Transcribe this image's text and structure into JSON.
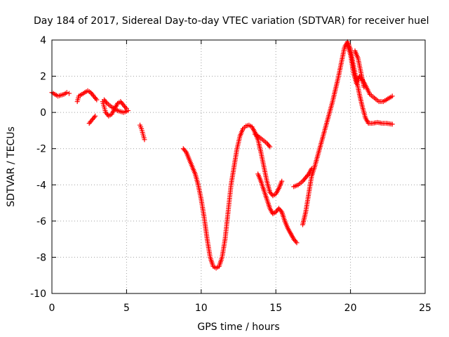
{
  "chart_data": {
    "type": "scatter",
    "title": "Day 184 of 2017, Sidereal Day-to-day VTEC variation (SDTVAR) for receiver huel",
    "xlabel": "GPS time / hours",
    "ylabel": "SDTVAR / TECUs",
    "xlim": [
      0,
      25
    ],
    "ylim": [
      -10,
      4
    ],
    "xticks": [
      0,
      5,
      10,
      15,
      20,
      25
    ],
    "yticks": [
      -10,
      -8,
      -6,
      -4,
      -2,
      0,
      2,
      4
    ],
    "grid": true,
    "marker": "+",
    "color": "#ff0000",
    "series": [
      {
        "segments": [
          [
            [
              0.0,
              1.1
            ],
            [
              0.2,
              1.0
            ],
            [
              0.4,
              0.9
            ],
            [
              0.6,
              0.95
            ],
            [
              0.8,
              1.0
            ],
            [
              1.0,
              1.1
            ],
            [
              1.15,
              1.05
            ]
          ],
          [
            [
              1.7,
              0.6
            ],
            [
              1.8,
              0.9
            ],
            [
              2.0,
              1.0
            ],
            [
              2.2,
              1.1
            ],
            [
              2.4,
              1.2
            ],
            [
              2.6,
              1.1
            ],
            [
              2.8,
              0.9
            ],
            [
              3.0,
              0.7
            ]
          ],
          [
            [
              2.5,
              -0.6
            ],
            [
              2.7,
              -0.4
            ],
            [
              2.9,
              -0.2
            ]
          ],
          [
            [
              3.4,
              0.6
            ],
            [
              3.5,
              0.3
            ],
            [
              3.6,
              0.0
            ],
            [
              3.8,
              -0.2
            ],
            [
              4.0,
              -0.1
            ],
            [
              4.2,
              0.2
            ],
            [
              4.4,
              0.5
            ],
            [
              4.6,
              0.6
            ],
            [
              4.8,
              0.4
            ],
            [
              5.0,
              0.2
            ],
            [
              5.1,
              0.1
            ],
            [
              4.8,
              0.0
            ],
            [
              4.4,
              0.1
            ],
            [
              4.0,
              0.3
            ],
            [
              3.7,
              0.5
            ],
            [
              3.5,
              0.7
            ]
          ],
          [
            [
              5.9,
              -0.7
            ],
            [
              6.0,
              -0.9
            ],
            [
              6.1,
              -1.2
            ],
            [
              6.2,
              -1.5
            ]
          ],
          [
            [
              8.8,
              -2.0
            ],
            [
              9.0,
              -2.2
            ],
            [
              9.2,
              -2.6
            ],
            [
              9.4,
              -3.0
            ],
            [
              9.6,
              -3.4
            ],
            [
              9.8,
              -4.0
            ],
            [
              10.0,
              -4.8
            ],
            [
              10.2,
              -5.8
            ],
            [
              10.4,
              -7.0
            ],
            [
              10.6,
              -8.0
            ],
            [
              10.8,
              -8.5
            ],
            [
              11.0,
              -8.6
            ],
            [
              11.2,
              -8.5
            ],
            [
              11.4,
              -8.0
            ],
            [
              11.6,
              -7.0
            ],
            [
              11.8,
              -5.5
            ],
            [
              12.0,
              -4.0
            ],
            [
              12.2,
              -3.0
            ],
            [
              12.4,
              -2.0
            ],
            [
              12.6,
              -1.3
            ],
            [
              12.8,
              -0.9
            ],
            [
              13.0,
              -0.75
            ],
            [
              13.2,
              -0.7
            ],
            [
              13.4,
              -0.8
            ],
            [
              13.6,
              -1.1
            ],
            [
              13.8,
              -1.5
            ],
            [
              14.0,
              -2.2
            ],
            [
              14.2,
              -3.0
            ],
            [
              14.4,
              -3.8
            ],
            [
              14.6,
              -4.4
            ],
            [
              14.8,
              -4.6
            ],
            [
              15.0,
              -4.5
            ],
            [
              15.2,
              -4.2
            ],
            [
              15.4,
              -3.8
            ]
          ],
          [
            [
              13.6,
              -1.2
            ],
            [
              13.8,
              -1.3
            ],
            [
              14.1,
              -1.5
            ],
            [
              14.4,
              -1.7
            ],
            [
              14.6,
              -1.9
            ]
          ],
          [
            [
              13.8,
              -3.4
            ],
            [
              14.0,
              -3.8
            ],
            [
              14.2,
              -4.3
            ],
            [
              14.4,
              -4.8
            ],
            [
              14.6,
              -5.3
            ],
            [
              14.8,
              -5.6
            ],
            [
              15.0,
              -5.5
            ],
            [
              15.2,
              -5.3
            ],
            [
              15.4,
              -5.5
            ],
            [
              15.6,
              -6.0
            ],
            [
              15.8,
              -6.4
            ],
            [
              16.0,
              -6.7
            ],
            [
              16.2,
              -7.0
            ],
            [
              16.4,
              -7.2
            ]
          ],
          [
            [
              16.2,
              -4.1
            ],
            [
              16.5,
              -4.0
            ],
            [
              16.8,
              -3.8
            ],
            [
              17.0,
              -3.6
            ],
            [
              17.2,
              -3.4
            ],
            [
              17.4,
              -3.1
            ]
          ],
          [
            [
              16.8,
              -6.2
            ],
            [
              17.0,
              -5.5
            ],
            [
              17.2,
              -4.5
            ],
            [
              17.4,
              -3.5
            ],
            [
              17.6,
              -3.0
            ],
            [
              17.8,
              -2.4
            ],
            [
              18.0,
              -1.8
            ],
            [
              18.2,
              -1.2
            ],
            [
              18.4,
              -0.6
            ],
            [
              18.6,
              0.0
            ],
            [
              18.8,
              0.6
            ],
            [
              19.0,
              1.3
            ],
            [
              19.2,
              2.0
            ],
            [
              19.4,
              2.8
            ],
            [
              19.6,
              3.6
            ],
            [
              19.8,
              3.9
            ],
            [
              20.0,
              3.5
            ],
            [
              20.2,
              2.6
            ],
            [
              20.4,
              1.8
            ],
            [
              20.6,
              1.0
            ],
            [
              20.8,
              0.3
            ],
            [
              21.0,
              -0.3
            ],
            [
              21.2,
              -0.6
            ],
            [
              21.5,
              -0.6
            ],
            [
              21.8,
              -0.55
            ],
            [
              22.1,
              -0.6
            ],
            [
              22.4,
              -0.6
            ],
            [
              22.8,
              -0.65
            ]
          ],
          [
            [
              19.8,
              3.7
            ],
            [
              20.0,
              3.2
            ],
            [
              20.2,
              2.2
            ],
            [
              20.4,
              1.6
            ],
            [
              20.6,
              2.0
            ],
            [
              20.8,
              1.8
            ],
            [
              21.0,
              1.5
            ],
            [
              21.3,
              1.0
            ],
            [
              21.6,
              0.8
            ],
            [
              21.9,
              0.6
            ],
            [
              22.2,
              0.6
            ],
            [
              22.5,
              0.75
            ],
            [
              22.8,
              0.9
            ]
          ],
          [
            [
              20.3,
              3.4
            ],
            [
              20.5,
              3.0
            ],
            [
              20.7,
              2.2
            ],
            [
              20.9,
              1.4
            ]
          ]
        ]
      }
    ]
  }
}
